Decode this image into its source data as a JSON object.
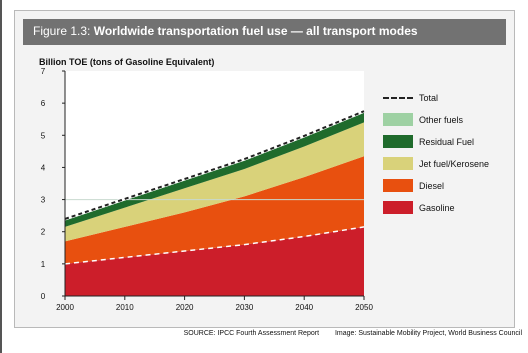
{
  "figure": {
    "label": "Figure 1.3:",
    "title": "Worldwide transportation fuel use — all transport modes"
  },
  "source": {
    "left": "SOURCE: IPCC Fourth Assessment Report",
    "right": "Image: Sustainable Mobility Project, World Business Council"
  },
  "colors": {
    "title_bar": "#727272",
    "background": "#f3f3f3"
  },
  "chart_data": {
    "type": "area",
    "stacked": true,
    "ylabel": "Billion TOE (tons of Gasoline Equivalent)",
    "xlabel": "",
    "x": [
      2000,
      2010,
      2020,
      2030,
      2040,
      2050
    ],
    "xlim": [
      2000,
      2050
    ],
    "ylim": [
      0,
      7
    ],
    "yticks": [
      0,
      1,
      2,
      3,
      4,
      5,
      6,
      7
    ],
    "grid": false,
    "legend_position": "right",
    "series": [
      {
        "name": "Gasoline",
        "color": "#cc1e2a",
        "values": [
          1.0,
          1.2,
          1.4,
          1.6,
          1.85,
          2.15
        ]
      },
      {
        "name": "Diesel",
        "color": "#e8500f",
        "values": [
          0.7,
          0.95,
          1.2,
          1.5,
          1.85,
          2.2
        ]
      },
      {
        "name": "Jet fuel/Kerosene",
        "color": "#d9d27a",
        "values": [
          0.45,
          0.6,
          0.75,
          0.85,
          0.95,
          1.05
        ]
      },
      {
        "name": "Residual Fuel",
        "color": "#1f6b2c",
        "values": [
          0.2,
          0.22,
          0.24,
          0.26,
          0.28,
          0.3
        ]
      },
      {
        "name": "Other fuels",
        "color": "#9ed1a3",
        "values": [
          0.05,
          0.05,
          0.05,
          0.05,
          0.05,
          0.05
        ]
      }
    ],
    "total": {
      "name": "Total",
      "values": [
        2.4,
        3.02,
        3.64,
        4.26,
        4.98,
        5.75
      ]
    },
    "reference_line_y": 3.0
  }
}
